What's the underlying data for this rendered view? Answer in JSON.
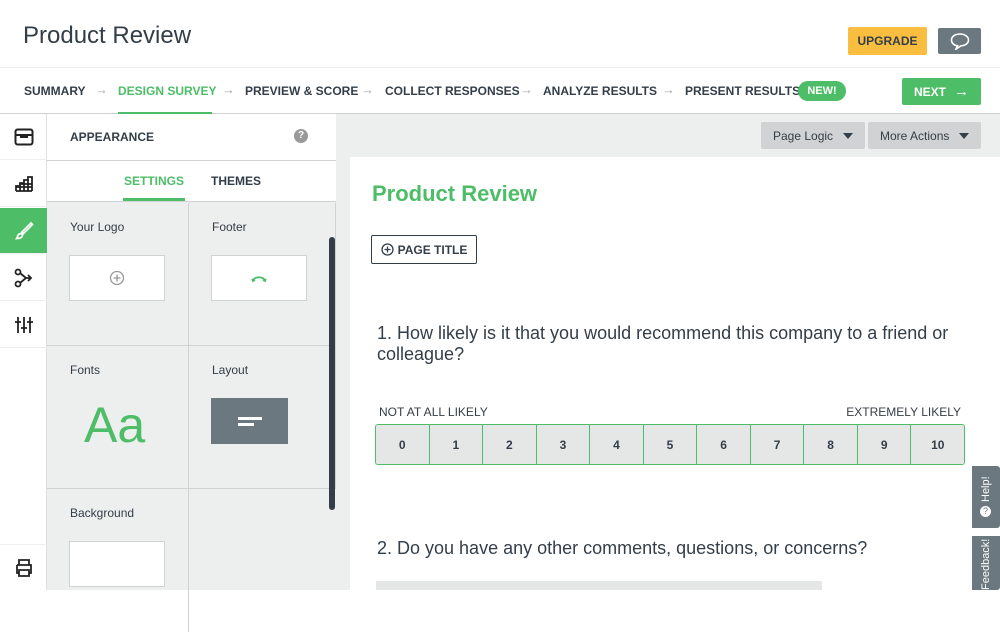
{
  "header": {
    "title": "Product Review",
    "upgrade_label": "UPGRADE"
  },
  "nav": {
    "steps": [
      "SUMMARY",
      "DESIGN SURVEY",
      "PREVIEW & SCORE",
      "COLLECT RESPONSES",
      "ANALYZE RESULTS",
      "PRESENT RESULTS"
    ],
    "active": "DESIGN SURVEY",
    "new_badge": "NEW!",
    "next_label": "NEXT"
  },
  "panel": {
    "title": "APPEARANCE",
    "tabs": [
      "SETTINGS",
      "THEMES"
    ],
    "cells": {
      "logo": "Your Logo",
      "footer": "Footer",
      "fonts": "Fonts",
      "fonts_sample": "Aa",
      "layout": "Layout",
      "background": "Background"
    }
  },
  "toolbar": {
    "page_logic": "Page Logic",
    "more_actions": "More Actions"
  },
  "survey": {
    "title": "Product Review",
    "page_title_button": "PAGE TITLE",
    "q1": "1. How likely is it that you would recommend this company to a friend or colleague?",
    "low_label": "NOT AT ALL LIKELY",
    "high_label": "EXTREMELY LIKELY",
    "scale": [
      "0",
      "1",
      "2",
      "3",
      "4",
      "5",
      "6",
      "7",
      "8",
      "9",
      "10"
    ],
    "q2": "2. Do you have any other comments, questions, or concerns?"
  },
  "side": {
    "help": "Help!",
    "feedback": "Feedback!"
  },
  "colors": {
    "accent": "#4dbd68",
    "upgrade": "#f9be40",
    "dark": "#333e48"
  }
}
